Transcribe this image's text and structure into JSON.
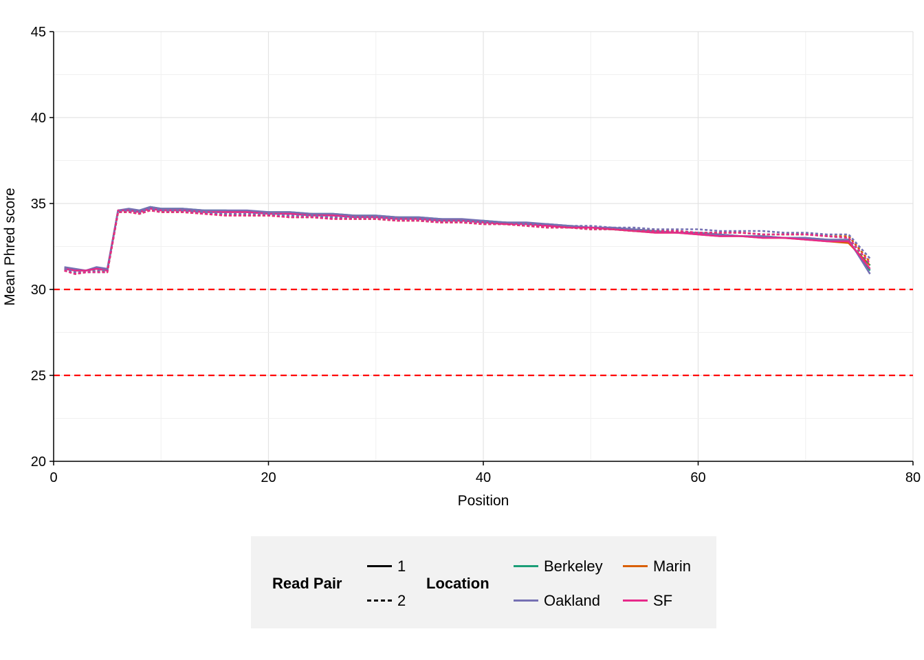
{
  "chart_data": {
    "type": "line",
    "xlabel": "Position",
    "ylabel": "Mean Phred score",
    "xlim": [
      0,
      80
    ],
    "ylim": [
      20,
      45
    ],
    "x_ticks": [
      0,
      20,
      40,
      60,
      80
    ],
    "y_ticks": [
      20,
      25,
      30,
      35,
      40,
      45
    ],
    "grid": true,
    "reference_lines": [
      {
        "y": 30,
        "style": "dashed",
        "color": "#ff0000"
      },
      {
        "y": 25,
        "style": "dashed",
        "color": "#ff0000"
      }
    ],
    "x": [
      1,
      2,
      3,
      4,
      5,
      6,
      7,
      8,
      9,
      10,
      12,
      14,
      16,
      18,
      20,
      22,
      24,
      26,
      28,
      30,
      32,
      34,
      36,
      38,
      40,
      42,
      44,
      46,
      48,
      50,
      52,
      54,
      56,
      58,
      60,
      62,
      64,
      66,
      68,
      70,
      72,
      74,
      76
    ],
    "series": [
      {
        "name": "Berkeley",
        "read_pair": "1",
        "color": "#1b9e77",
        "style": "solid",
        "values": [
          31.2,
          31.1,
          31.1,
          31.2,
          31.1,
          34.6,
          34.6,
          34.6,
          34.8,
          34.7,
          34.7,
          34.6,
          34.6,
          34.5,
          34.5,
          34.5,
          34.4,
          34.4,
          34.3,
          34.3,
          34.2,
          34.2,
          34.1,
          34.0,
          34.0,
          33.9,
          33.8,
          33.8,
          33.7,
          33.6,
          33.5,
          33.5,
          33.4,
          33.3,
          33.3,
          33.2,
          33.1,
          33.1,
          33.0,
          33.0,
          32.9,
          32.8,
          31.1
        ]
      },
      {
        "name": "Marin",
        "read_pair": "1",
        "color": "#d95f02",
        "style": "solid",
        "values": [
          31.2,
          31.1,
          31.1,
          31.2,
          31.1,
          34.6,
          34.6,
          34.5,
          34.7,
          34.6,
          34.6,
          34.5,
          34.5,
          34.5,
          34.4,
          34.4,
          34.4,
          34.3,
          34.3,
          34.2,
          34.2,
          34.1,
          34.0,
          34.0,
          33.9,
          33.9,
          33.8,
          33.7,
          33.6,
          33.6,
          33.5,
          33.4,
          33.3,
          33.3,
          33.2,
          33.1,
          33.1,
          33.0,
          33.0,
          32.9,
          32.8,
          32.7,
          31.4
        ]
      },
      {
        "name": "Oakland",
        "read_pair": "1",
        "color": "#7570b3",
        "style": "solid",
        "values": [
          31.3,
          31.2,
          31.1,
          31.3,
          31.2,
          34.6,
          34.7,
          34.6,
          34.8,
          34.7,
          34.7,
          34.6,
          34.6,
          34.6,
          34.5,
          34.5,
          34.4,
          34.4,
          34.3,
          34.3,
          34.2,
          34.2,
          34.1,
          34.1,
          34.0,
          33.9,
          33.9,
          33.8,
          33.7,
          33.6,
          33.6,
          33.5,
          33.4,
          33.3,
          33.3,
          33.2,
          33.1,
          33.1,
          33.0,
          33.0,
          32.9,
          32.9,
          30.9
        ]
      },
      {
        "name": "SF",
        "read_pair": "1",
        "color": "#e7298a",
        "style": "solid",
        "values": [
          31.2,
          31.1,
          31.1,
          31.2,
          31.1,
          34.6,
          34.6,
          34.5,
          34.7,
          34.6,
          34.6,
          34.5,
          34.5,
          34.5,
          34.4,
          34.4,
          34.3,
          34.3,
          34.2,
          34.2,
          34.1,
          34.1,
          34.0,
          34.0,
          33.9,
          33.8,
          33.8,
          33.7,
          33.6,
          33.6,
          33.5,
          33.4,
          33.3,
          33.3,
          33.2,
          33.1,
          33.1,
          33.0,
          33.0,
          32.9,
          32.8,
          32.8,
          31.2
        ]
      },
      {
        "name": "Berkeley",
        "read_pair": "2",
        "color": "#1b9e77",
        "style": "dashed",
        "values": [
          31.1,
          30.9,
          31.0,
          31.0,
          31.0,
          34.5,
          34.5,
          34.4,
          34.6,
          34.5,
          34.5,
          34.4,
          34.4,
          34.3,
          34.3,
          34.2,
          34.2,
          34.2,
          34.1,
          34.1,
          34.0,
          34.0,
          33.9,
          33.9,
          33.8,
          33.8,
          33.7,
          33.6,
          33.6,
          33.5,
          33.5,
          33.4,
          33.4,
          33.4,
          33.3,
          33.3,
          33.3,
          33.2,
          33.2,
          33.2,
          33.1,
          33.0,
          31.4
        ]
      },
      {
        "name": "Marin",
        "read_pair": "2",
        "color": "#d95f02",
        "style": "dashed",
        "values": [
          31.1,
          30.9,
          31.0,
          31.1,
          31.0,
          34.5,
          34.5,
          34.4,
          34.6,
          34.5,
          34.5,
          34.4,
          34.3,
          34.3,
          34.3,
          34.2,
          34.2,
          34.1,
          34.1,
          34.1,
          34.0,
          34.0,
          33.9,
          33.9,
          33.8,
          33.8,
          33.7,
          33.6,
          33.6,
          33.5,
          33.5,
          33.4,
          33.4,
          33.4,
          33.3,
          33.3,
          33.3,
          33.2,
          33.2,
          33.2,
          33.1,
          33.1,
          31.6
        ]
      },
      {
        "name": "Oakland",
        "read_pair": "2",
        "color": "#7570b3",
        "style": "dashed",
        "values": [
          31.2,
          31.0,
          31.0,
          31.1,
          31.1,
          34.6,
          34.6,
          34.5,
          34.7,
          34.6,
          34.6,
          34.5,
          34.4,
          34.4,
          34.4,
          34.3,
          34.3,
          34.2,
          34.2,
          34.2,
          34.1,
          34.1,
          34.0,
          34.0,
          33.9,
          33.9,
          33.8,
          33.8,
          33.7,
          33.7,
          33.6,
          33.6,
          33.5,
          33.5,
          33.5,
          33.4,
          33.4,
          33.4,
          33.3,
          33.3,
          33.2,
          33.2,
          31.8
        ]
      },
      {
        "name": "SF",
        "read_pair": "2",
        "color": "#e7298a",
        "style": "dashed",
        "values": [
          31.1,
          30.9,
          31.0,
          31.0,
          31.0,
          34.5,
          34.5,
          34.4,
          34.6,
          34.5,
          34.5,
          34.4,
          34.3,
          34.3,
          34.3,
          34.2,
          34.2,
          34.1,
          34.1,
          34.1,
          34.0,
          34.0,
          33.9,
          33.9,
          33.8,
          33.8,
          33.7,
          33.6,
          33.6,
          33.5,
          33.5,
          33.4,
          33.4,
          33.4,
          33.3,
          33.3,
          33.3,
          33.2,
          33.2,
          33.2,
          33.1,
          33.0,
          31.5
        ]
      }
    ],
    "legend": {
      "position": "bottom",
      "read_pair_title": "Read Pair",
      "read_pair_items": [
        {
          "label": "1",
          "style": "solid"
        },
        {
          "label": "2",
          "style": "dashed"
        }
      ],
      "location_title": "Location",
      "location_items": [
        {
          "label": "Berkeley",
          "color": "#1b9e77"
        },
        {
          "label": "Marin",
          "color": "#d95f02"
        },
        {
          "label": "Oakland",
          "color": "#7570b3"
        },
        {
          "label": "SF",
          "color": "#e7298a"
        }
      ]
    }
  }
}
